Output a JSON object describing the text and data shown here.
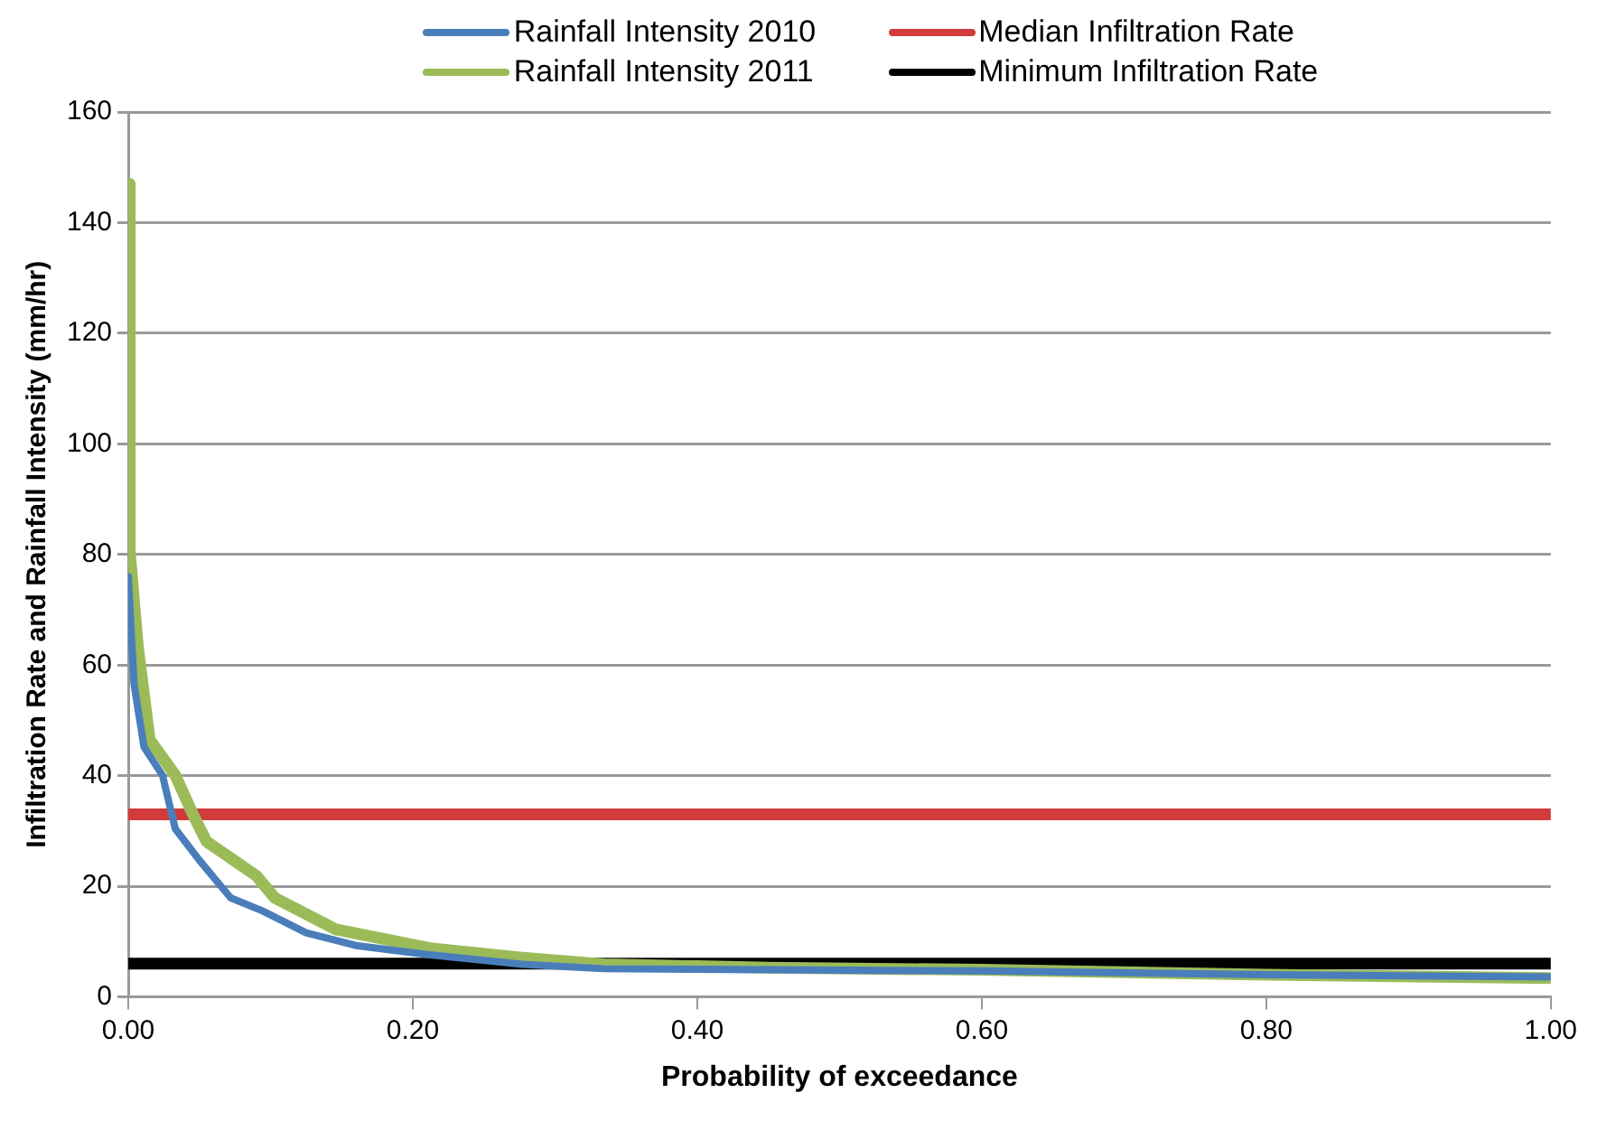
{
  "chart_data": {
    "type": "line",
    "xlabel": "Probability of exceedance",
    "ylabel": "Infiltration Rate and Rainfall Intensity (mm/hr)",
    "xlim": [
      0,
      1
    ],
    "xticks": [
      {
        "value": 0,
        "label": "0.00"
      },
      {
        "value": 0.2,
        "label": "0.20"
      },
      {
        "value": 0.4,
        "label": "0.40"
      },
      {
        "value": 0.6,
        "label": "0.60"
      },
      {
        "value": 0.8,
        "label": "0.80"
      },
      {
        "value": 1,
        "label": "1.00"
      }
    ],
    "ylim": [
      0,
      160
    ],
    "yticks": [
      0,
      20,
      40,
      60,
      80,
      100,
      120,
      140,
      160
    ],
    "grid": "y",
    "legend": "top",
    "marker": "none",
    "line_style": "solid",
    "series": [
      {
        "name": "Rainfall Intensity 2010",
        "color": "#4a7ebb",
        "x": [
          0,
          0.004,
          0.011,
          0.024,
          0.033,
          0.05,
          0.072,
          0.094,
          0.125,
          0.16,
          0.212,
          0.277,
          0.334,
          0.45,
          0.6,
          0.8,
          1
        ],
        "values": [
          76,
          56.6,
          45.2,
          40.1,
          30.4,
          24.7,
          17.9,
          15.6,
          11.6,
          9.3,
          7.6,
          5.9,
          5.1,
          4.9,
          4.7,
          4,
          3.6
        ]
      },
      {
        "name": "Rainfall Intensity 2011",
        "color": "#9bbb59",
        "x": [
          0,
          0.001,
          0.0066,
          0.015,
          0.033,
          0.046,
          0.055,
          0.09,
          0.103,
          0.146,
          0.212,
          0.277,
          0.334,
          0.45,
          0.6,
          0.8,
          1
        ],
        "values": [
          147,
          80.7,
          63.6,
          46.5,
          40.1,
          32.7,
          28.1,
          21.9,
          17.9,
          12.2,
          8.8,
          7.1,
          5.9,
          5.3,
          4.9,
          4,
          3.4
        ]
      },
      {
        "name": "Median Infiltration Rate",
        "color": "#d13b3b",
        "x": [
          0,
          1
        ],
        "values": [
          33,
          33
        ]
      },
      {
        "name": "Minimum Infiltration Rate",
        "color": "#000000",
        "x": [
          0,
          1
        ],
        "values": [
          6,
          6
        ]
      }
    ]
  }
}
